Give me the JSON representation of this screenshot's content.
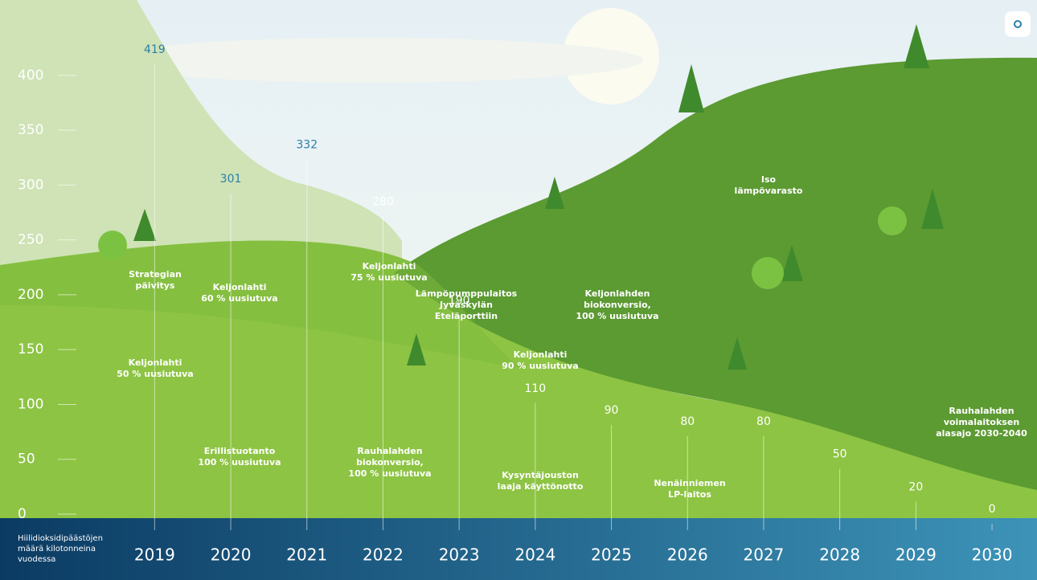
{
  "chart_data": {
    "type": "timeline",
    "axis_label": [
      "Hiilidioksidipäästöjen",
      "määrä kilotonneina",
      "vuodessa"
    ],
    "categories": [
      "2019",
      "2020",
      "2021",
      "2022",
      "2023",
      "2024",
      "2025",
      "2026",
      "2027",
      "2028",
      "2029",
      "2030"
    ],
    "values": [
      419,
      301,
      332,
      280,
      190,
      110,
      90,
      80,
      80,
      50,
      20,
      0
    ],
    "ylim": [
      0,
      465
    ],
    "yticks": [
      0,
      50,
      100,
      150,
      200,
      250,
      300,
      350,
      400
    ],
    "annotations": [
      {
        "lines": [
          "Strategian",
          "päivitys"
        ]
      },
      {
        "lines": [
          "Keljonlahti",
          "50 % uusiutuva"
        ]
      },
      {
        "lines": [
          "Keljonlahti",
          "60 % uusiutuva"
        ]
      },
      {
        "lines": [
          "Erillistuotanto",
          "100 % uusiutuva"
        ]
      },
      {
        "lines": [
          "Keljonlahti",
          "75 % uusiutuva"
        ]
      },
      {
        "lines": [
          "Rauhalahden",
          "biokonversio,",
          "100 % uusiutuva"
        ]
      },
      {
        "lines": [
          "Lämpöpumppulaitos",
          "Jyväskylän",
          "Eteläporttiin"
        ]
      },
      {
        "lines": [
          "Keljonlahti",
          "90 % uusiutuva"
        ]
      },
      {
        "lines": [
          "Kysyntäjouston",
          "laaja käyttönotto"
        ]
      },
      {
        "lines": [
          "Keljonlahden",
          "biokonversio,",
          "100 % uusiutuva"
        ]
      },
      {
        "lines": [
          "Nenäinniemen",
          "LP-laitos"
        ]
      },
      {
        "lines": [
          "Iso",
          "lämpövarasto"
        ]
      },
      {
        "lines": [
          "Rauhalahden",
          "voimalaitoksen",
          "alasajo 2030-2040"
        ]
      }
    ]
  }
}
